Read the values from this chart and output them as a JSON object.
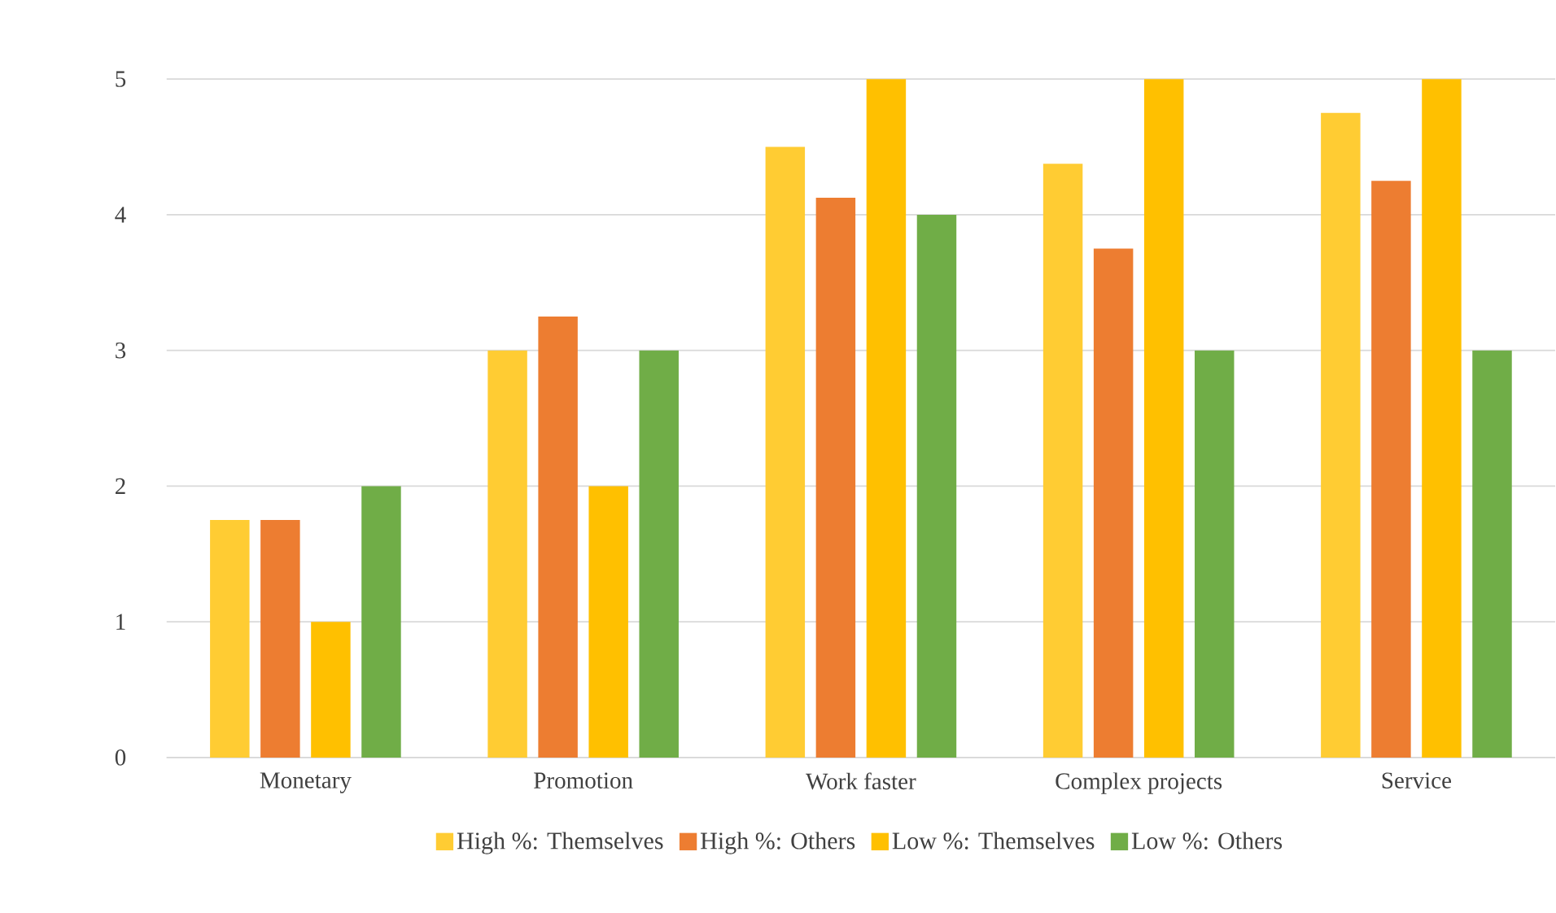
{
  "chart_data": {
    "type": "bar",
    "categories": [
      "Monetary",
      "Promotion",
      "Work faster",
      "Complex projects",
      "Service"
    ],
    "series": [
      {
        "name": "High %: Themselves",
        "color": "#ffcc33",
        "values": [
          1.75,
          3,
          4.5,
          4.375,
          4.75
        ]
      },
      {
        "name": "High %: Others",
        "color": "#ed7d31",
        "values": [
          1.75,
          3.25,
          4.125,
          3.75,
          4.25
        ]
      },
      {
        "name": "Low %: Themselves",
        "color": "#ffc000",
        "values": [
          1,
          2,
          5,
          5,
          5
        ]
      },
      {
        "name": "Low %: Others",
        "color": "#70ad47",
        "values": [
          2,
          3,
          4,
          3,
          3
        ]
      }
    ],
    "ylim": [
      0,
      5
    ],
    "yticks": [
      0,
      1,
      2,
      3,
      4,
      5
    ],
    "grid": "y",
    "legend": "bottom"
  }
}
